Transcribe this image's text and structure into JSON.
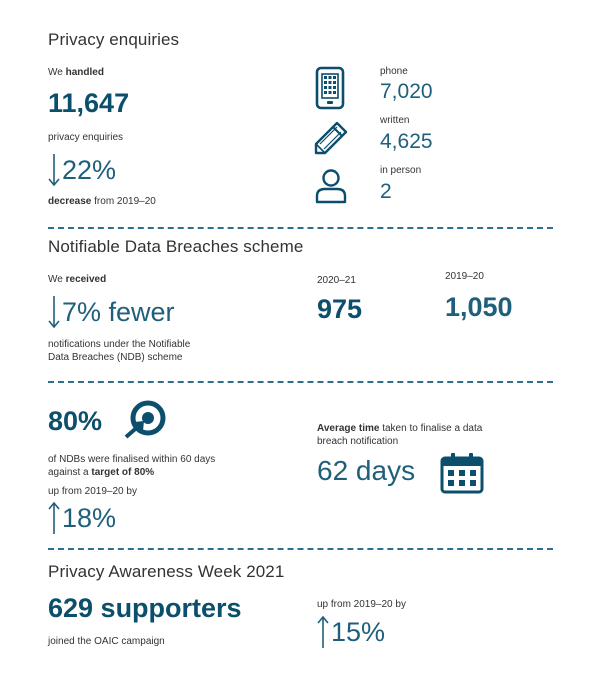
{
  "privacy_enquiries": {
    "title": "Privacy enquiries",
    "handled_pre": "We ",
    "handled_bold": "handled",
    "total": "11,647",
    "total_label": "privacy enquiries",
    "change": "22%",
    "change_label_bold": "decrease",
    "change_label_rest": " from 2019–20",
    "channels": [
      {
        "label": "phone",
        "value": "7,020",
        "icon": "phone-icon"
      },
      {
        "label": "written",
        "value": "4,625",
        "icon": "pencil-icon"
      },
      {
        "label": "in person",
        "value": "2",
        "icon": "person-icon"
      }
    ]
  },
  "ndb": {
    "title": "Notifiable Data Breaches scheme",
    "received_pre": "We ",
    "received_bold": "received",
    "change": "7% fewer",
    "change_label_line1": "notifications under the Notifiable",
    "change_label_line2": "Data Breaches (NDB) scheme",
    "year_a_label": "2020–21",
    "year_a_value": "975",
    "year_b_label": "2019–20",
    "year_b_value": "1,050"
  },
  "finalised": {
    "percent": "80%",
    "desc_line1": "of NDBs were finalised within 60 days",
    "desc_line2_pre": "against a ",
    "desc_line2_bold": "target of 80%",
    "up_label": "up from 2019–20 by",
    "up_value": "18%",
    "avg_bold": "Average time",
    "avg_rest_line1": " taken to finalise a data",
    "avg_line2": "breach notification",
    "avg_value": "62 days",
    "target_icon": "target-icon",
    "calendar_icon": "calendar-icon"
  },
  "paw": {
    "title": "Privacy Awareness Week 2021",
    "supporters": "629 supporters",
    "supporters_label": "joined the OAIC campaign",
    "up_label": "up from 2019–20 by",
    "up_value": "15%"
  },
  "colors": {
    "accent_dark": "#0b4f6c",
    "accent": "#1f5f7c",
    "divider": "#2d6f8c"
  }
}
